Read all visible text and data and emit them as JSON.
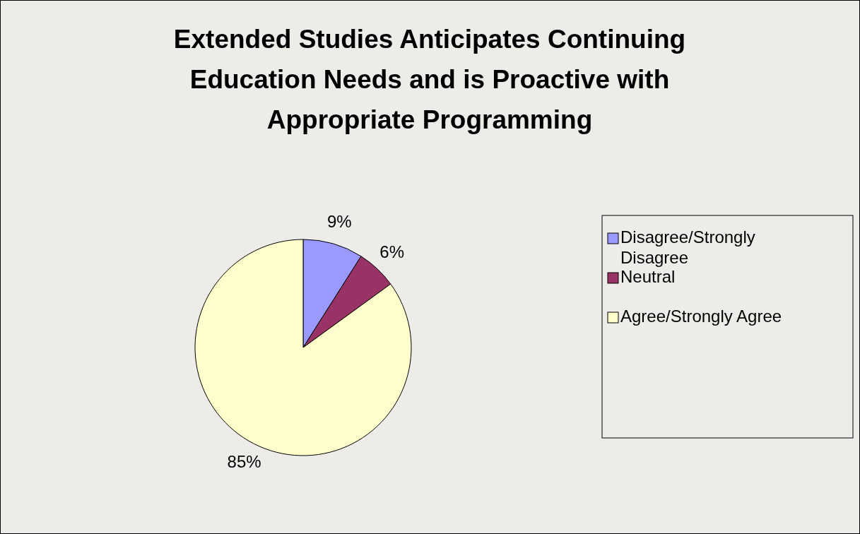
{
  "chart_data": {
    "type": "pie",
    "title": "Extended Studies Anticipates Continuing Education Needs and is Proactive with Appropriate Programming",
    "categories": [
      "Disagree/Strongly Disagree",
      "Neutral",
      "Agree/Strongly Agree"
    ],
    "values": [
      9,
      6,
      85
    ],
    "colors": [
      "#9999ff",
      "#993366",
      "#ffffcc"
    ],
    "value_labels": [
      "9%",
      "6%",
      "85%"
    ],
    "legend": "right"
  }
}
